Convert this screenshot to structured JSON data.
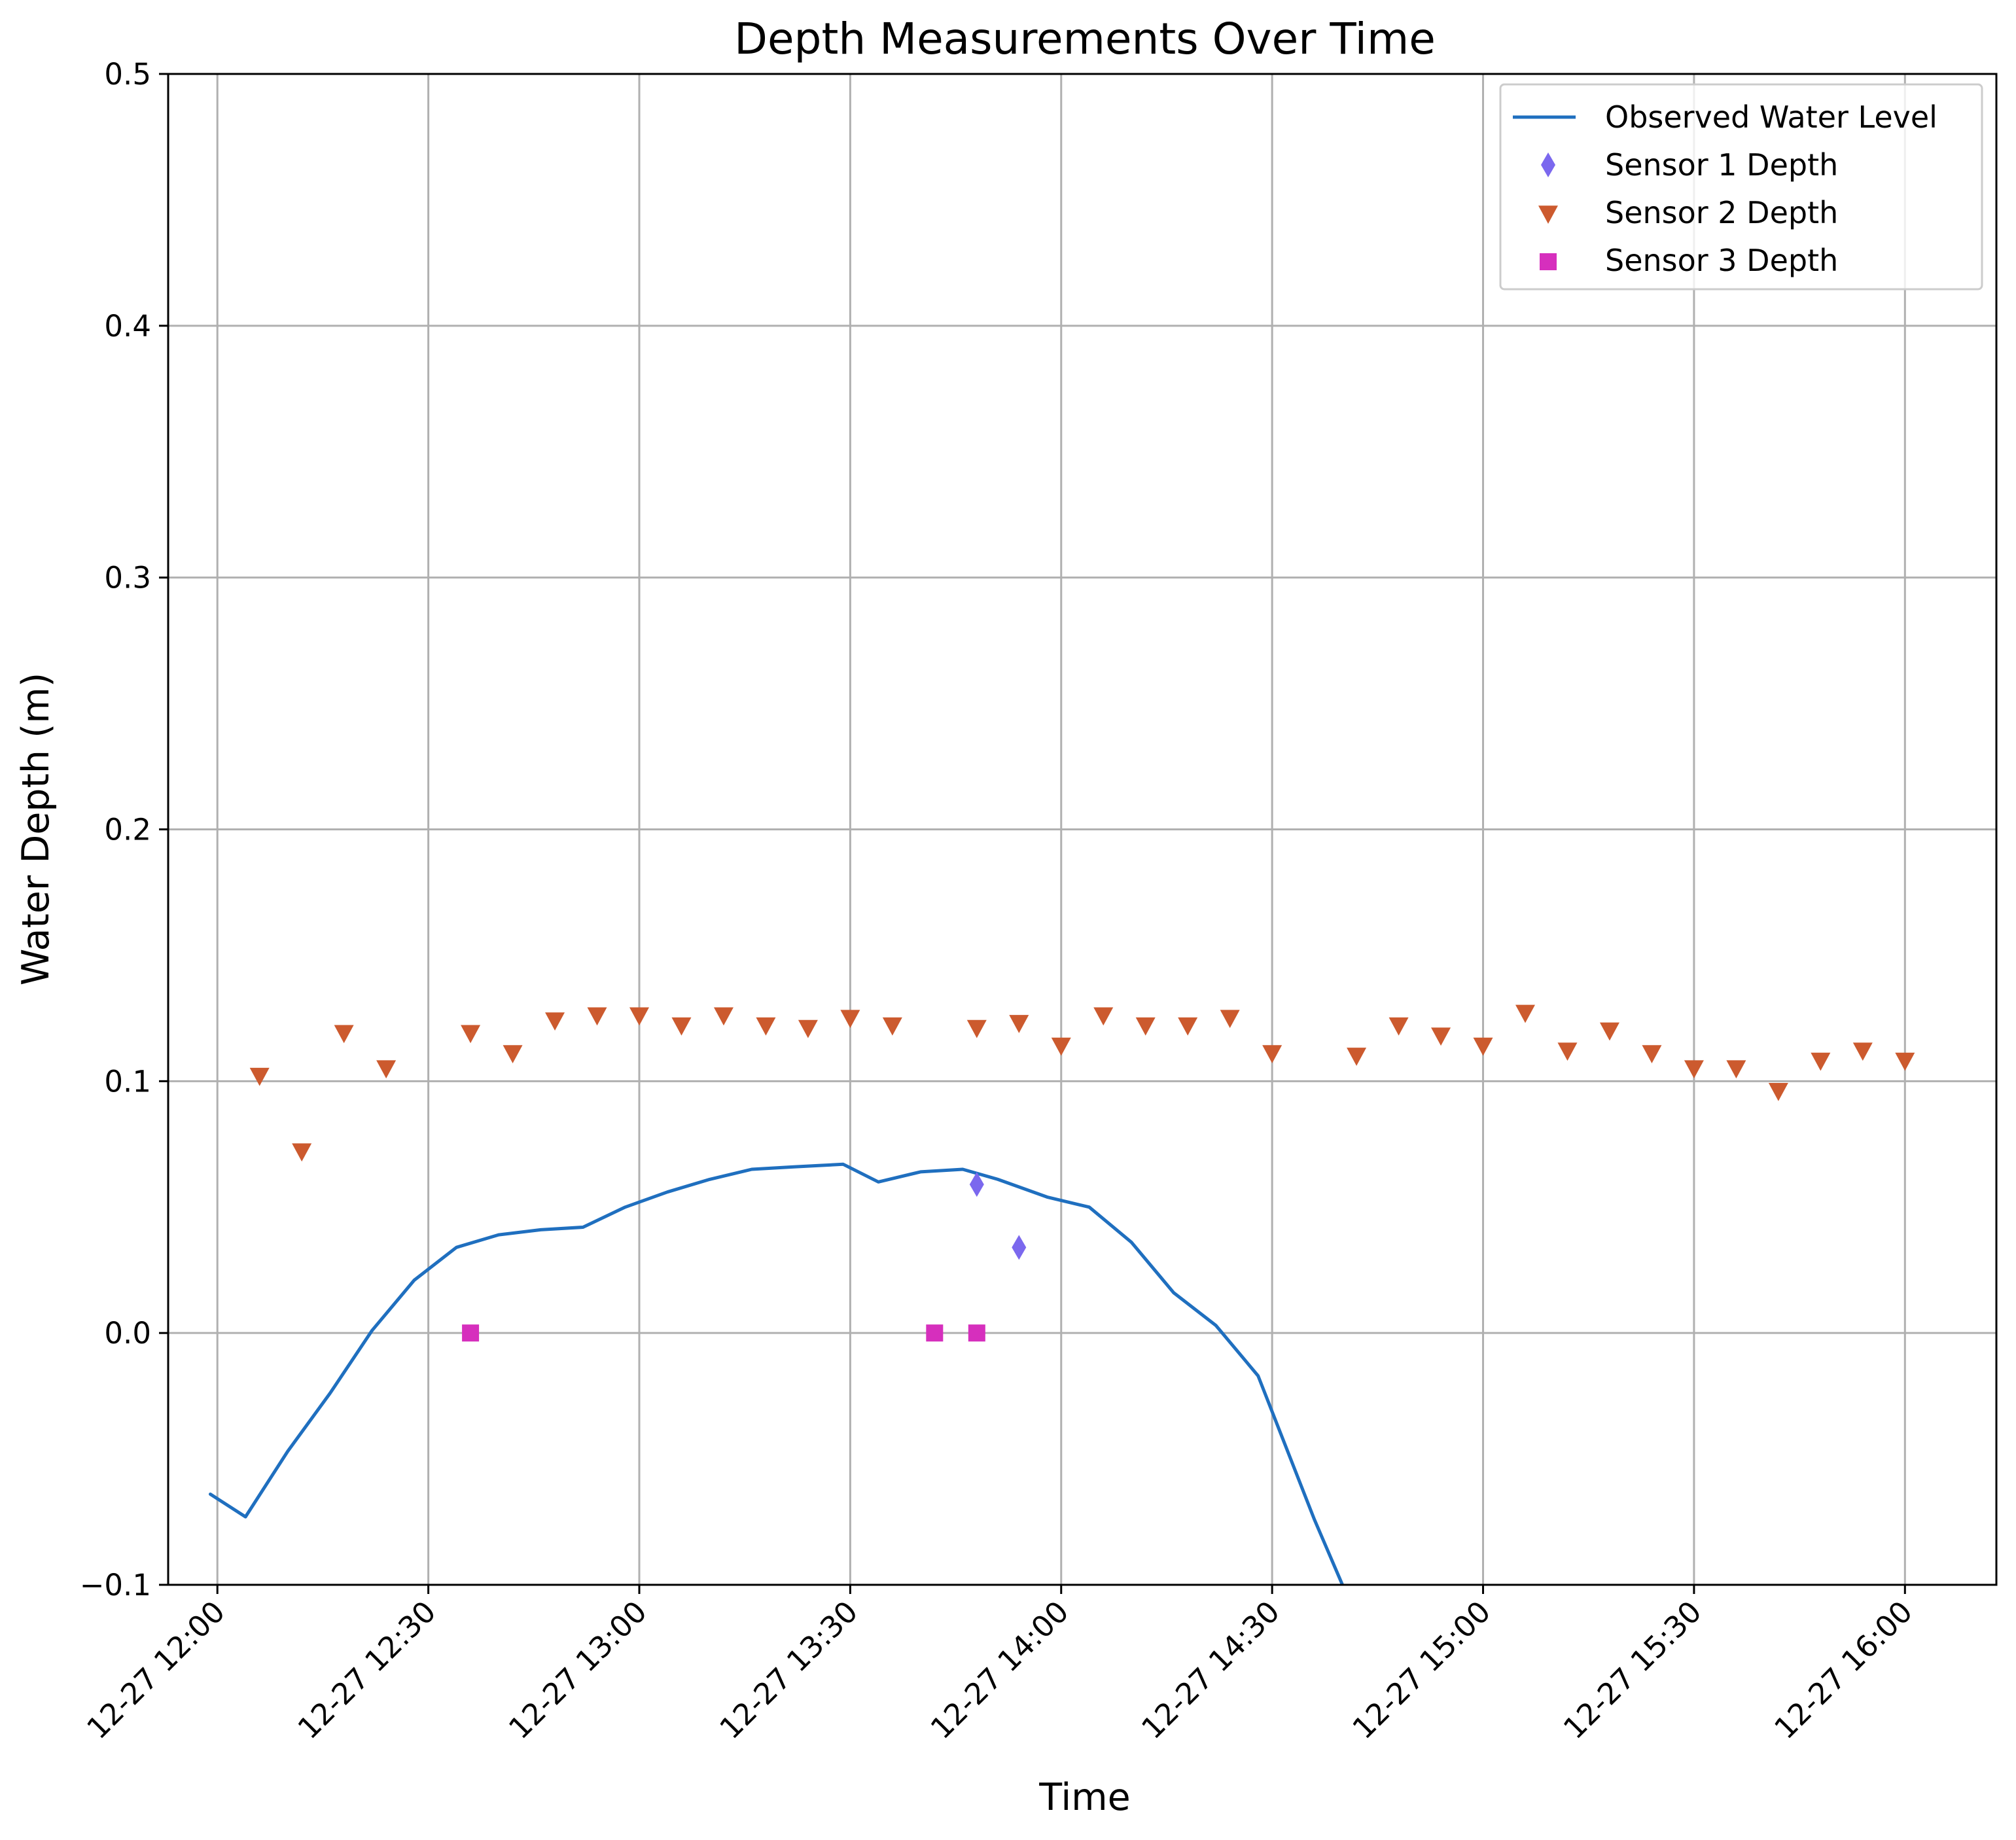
{
  "chart_data": {
    "type": "line+scatter",
    "title": "Depth Measurements Over Time",
    "xlabel": "Time",
    "ylabel": "Water Depth (m)",
    "xlim": [
      "12-27 11:53",
      "12-27 16:13"
    ],
    "ylim": [
      -0.1,
      0.5
    ],
    "grid": true,
    "legend_position": "top-right",
    "x_ticks": [
      "12-27 12:00",
      "12-27 12:30",
      "12-27 13:00",
      "12-27 13:30",
      "12-27 14:00",
      "12-27 14:30",
      "12-27 15:00",
      "12-27 15:30",
      "12-27 16:00"
    ],
    "y_ticks": [
      -0.1,
      0.0,
      0.1,
      0.2,
      0.3,
      0.4,
      0.5
    ],
    "y_tick_labels": [
      "−0.1",
      "0.0",
      "0.1",
      "0.2",
      "0.3",
      "0.4",
      "0.5"
    ],
    "series": [
      {
        "name": "Observed Water Level",
        "kind": "line",
        "color": "#1f6fbf",
        "x": [
          "12-27 11:59",
          "12-27 12:04",
          "12-27 12:10",
          "12-27 12:16",
          "12-27 12:22",
          "12-27 12:28",
          "12-27 12:34",
          "12-27 12:40",
          "12-27 12:46",
          "12-27 12:52",
          "12-27 12:58",
          "12-27 13:04",
          "12-27 13:10",
          "12-27 13:16",
          "12-27 13:22",
          "12-27 13:29",
          "12-27 13:34",
          "12-27 13:40",
          "12-27 13:46",
          "12-27 13:51",
          "12-27 13:58",
          "12-27 14:04",
          "12-27 14:10",
          "12-27 14:16",
          "12-27 14:22",
          "12-27 14:28",
          "12-27 14:36",
          "12-27 14:40"
        ],
        "y": [
          -0.064,
          -0.073,
          -0.047,
          -0.024,
          0.001,
          0.021,
          0.034,
          0.039,
          0.041,
          0.042,
          0.05,
          0.056,
          0.061,
          0.065,
          0.066,
          0.067,
          0.06,
          0.064,
          0.065,
          0.061,
          0.054,
          0.05,
          0.036,
          0.016,
          0.003,
          -0.017,
          -0.074,
          -0.1
        ]
      },
      {
        "name": "Sensor 1 Depth",
        "kind": "scatter",
        "marker": "diamond",
        "color": "#7b68ee",
        "x": [
          "12-27 13:48",
          "12-27 13:54"
        ],
        "y": [
          0.059,
          0.034
        ]
      },
      {
        "name": "Sensor 2 Depth",
        "kind": "scatter",
        "marker": "triangle-down",
        "color": "#cc5a2e",
        "x": [
          "12-27 12:06",
          "12-27 12:12",
          "12-27 12:18",
          "12-27 12:24",
          "12-27 12:36",
          "12-27 12:42",
          "12-27 12:48",
          "12-27 12:54",
          "12-27 13:00",
          "12-27 13:06",
          "12-27 13:12",
          "12-27 13:18",
          "12-27 13:24",
          "12-27 13:30",
          "12-27 13:36",
          "12-27 13:48",
          "12-27 13:54",
          "12-27 14:00",
          "12-27 14:06",
          "12-27 14:12",
          "12-27 14:18",
          "12-27 14:24",
          "12-27 14:30",
          "12-27 14:42",
          "12-27 14:48",
          "12-27 14:54",
          "12-27 15:00",
          "12-27 15:06",
          "12-27 15:12",
          "12-27 15:18",
          "12-27 15:24",
          "12-27 15:30",
          "12-27 15:36",
          "12-27 15:42",
          "12-27 15:48",
          "12-27 15:54",
          "12-27 16:00"
        ],
        "y": [
          0.102,
          0.072,
          0.119,
          0.105,
          0.119,
          0.111,
          0.124,
          0.126,
          0.126,
          0.122,
          0.126,
          0.122,
          0.121,
          0.125,
          0.122,
          0.121,
          0.123,
          0.114,
          0.126,
          0.122,
          0.122,
          0.125,
          0.111,
          0.11,
          0.122,
          0.118,
          0.114,
          0.127,
          0.112,
          0.12,
          0.111,
          0.105,
          0.105,
          0.096,
          0.108,
          0.112,
          0.108
        ]
      },
      {
        "name": "Sensor 3 Depth",
        "kind": "scatter",
        "marker": "square",
        "color": "#d62fbd",
        "x": [
          "12-27 12:36",
          "12-27 13:42",
          "12-27 13:48"
        ],
        "y": [
          0.0,
          0.0,
          0.0
        ]
      }
    ]
  }
}
